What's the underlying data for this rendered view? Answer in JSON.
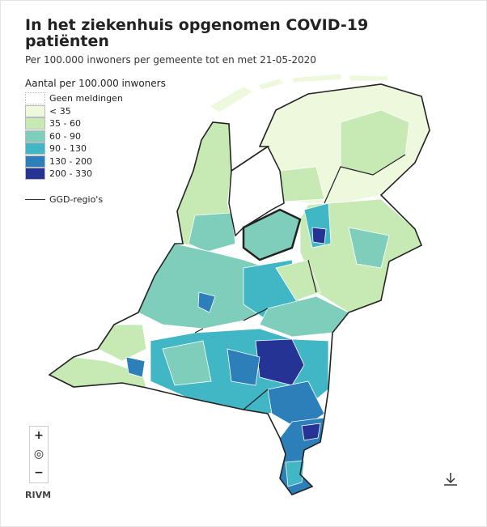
{
  "header": {
    "title": "In het ziekenhuis opgenomen COVID-19 patiënten",
    "subtitle": "Per 100.000 inwoners per gemeente tot en met 21-05-2020"
  },
  "legend": {
    "title": "Aantal per 100.000 inwoners",
    "items": [
      {
        "label": "Geen meldingen",
        "color": "#ffffff"
      },
      {
        "label": "< 35",
        "color": "#edf8dc"
      },
      {
        "label": "35 - 60",
        "color": "#c7e9b4"
      },
      {
        "label": "60 - 90",
        "color": "#7fcdbb"
      },
      {
        "label": "90 - 130",
        "color": "#41b6c4"
      },
      {
        "label": "130 - 200",
        "color": "#2c7fb8"
      },
      {
        "label": "200 - 330",
        "color": "#253494"
      }
    ],
    "boundary": "GGD-regio's"
  },
  "controls": {
    "zoom_in": "+",
    "reset": "◎",
    "zoom_out": "−"
  },
  "source": "RIVM"
}
